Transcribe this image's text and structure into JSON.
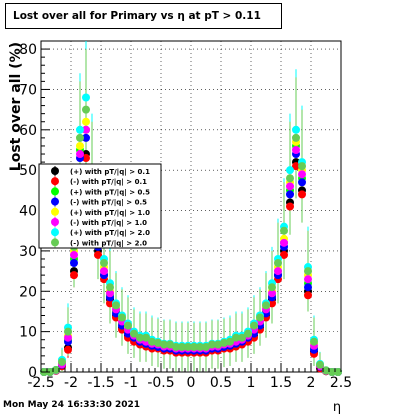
{
  "title": "Lost over all for Primary vs   η at pT > 0.11",
  "timestamp": "Mon May 24 16:33:30 2021",
  "chart_data": {
    "type": "scatter",
    "xlabel": "η",
    "ylabel": "Lost over all (%)",
    "xlim": [
      -2.5,
      2.5
    ],
    "ylim": [
      0,
      82
    ],
    "x_ticks": [
      "-2.5",
      "-2",
      "-1.5",
      "-1",
      "-0.5",
      "0",
      "0.5",
      "1",
      "1.5",
      "2",
      "2.5"
    ],
    "y_ticks": [
      "0",
      "10",
      "20",
      "30",
      "40",
      "50",
      "60",
      "70",
      "80"
    ],
    "grid": true,
    "legend_position": "left, inside plot",
    "x": [
      -2.45,
      -2.35,
      -2.25,
      -2.15,
      -2.05,
      -1.95,
      -1.85,
      -1.75,
      -1.65,
      -1.55,
      -1.45,
      -1.35,
      -1.25,
      -1.15,
      -1.05,
      -0.95,
      -0.85,
      -0.75,
      -0.65,
      -0.55,
      -0.45,
      -0.35,
      -0.25,
      -0.15,
      -0.05,
      0.05,
      0.15,
      0.25,
      0.35,
      0.45,
      0.55,
      0.65,
      0.75,
      0.85,
      0.95,
      1.05,
      1.15,
      1.25,
      1.35,
      1.45,
      1.55,
      1.65,
      1.75,
      1.85,
      1.95,
      2.05,
      2.15,
      2.25,
      2.35,
      2.45
    ],
    "series": [
      {
        "name": "(+) with pT/|q| > 0.1",
        "color": "#000000",
        "values": [
          0,
          0,
          0.3,
          1.5,
          6,
          25,
          50,
          54,
          42,
          30,
          24,
          18,
          14,
          11,
          9,
          8,
          7,
          6.5,
          6,
          6,
          5.5,
          5.5,
          5,
          5,
          5,
          5,
          5,
          5,
          5.5,
          5.5,
          6,
          6,
          6.5,
          7,
          8,
          9,
          11,
          14,
          18,
          24,
          30,
          42,
          52,
          45,
          20,
          5,
          1,
          0.2,
          0,
          0
        ],
        "errors": [
          0,
          0,
          0.3,
          1,
          2,
          3,
          4,
          4,
          4,
          3,
          3,
          3,
          2.5,
          2.5,
          2,
          2,
          2,
          2,
          2,
          2,
          2,
          2,
          2,
          2,
          2,
          2,
          2,
          2,
          2,
          2,
          2,
          2,
          2,
          2,
          2,
          2,
          2.5,
          2.5,
          3,
          3,
          3,
          4,
          4,
          4,
          3,
          2,
          1,
          0.3,
          0,
          0
        ]
      },
      {
        "name": "(-) with pT/|q| > 0.1",
        "color": "#ff0000",
        "values": [
          0,
          0,
          0.3,
          1.4,
          5.5,
          24,
          49,
          53,
          41,
          29,
          23,
          17,
          13.5,
          10.5,
          8.5,
          7.5,
          6.8,
          6.3,
          5.8,
          5.8,
          5.3,
          5.3,
          4.8,
          4.8,
          4.8,
          4.8,
          4.8,
          4.8,
          5.3,
          5.3,
          5.8,
          5.8,
          6.3,
          6.8,
          7.5,
          8.5,
          10.5,
          13.5,
          17,
          23,
          29,
          41,
          51,
          44,
          19,
          4.5,
          0.9,
          0.2,
          0,
          0
        ],
        "errors": [
          0,
          0,
          0.3,
          1,
          2,
          3,
          4,
          4,
          4,
          3,
          3,
          3,
          2.5,
          2.5,
          2,
          2,
          2,
          2,
          2,
          2,
          2,
          2,
          2,
          2,
          2,
          2,
          2,
          2,
          2,
          2,
          2,
          2,
          2,
          2,
          2,
          2,
          2.5,
          2.5,
          3,
          3,
          3,
          4,
          4,
          4,
          3,
          2,
          1,
          0.3,
          0,
          0
        ]
      },
      {
        "name": "(+) with pT/|q| > 0.5",
        "color": "#00ff00",
        "values": [
          0,
          0,
          0.5,
          2,
          8,
          28,
          55,
          60,
          45,
          32,
          25,
          19,
          15,
          12,
          10,
          9,
          8,
          7,
          7,
          6.5,
          6,
          6,
          5.5,
          5.5,
          5.5,
          5.5,
          5.5,
          5.5,
          6,
          6,
          6.5,
          7,
          7,
          8,
          9,
          10,
          12,
          15,
          19,
          25,
          32,
          45,
          56,
          48,
          22,
          6,
          1.5,
          0.3,
          0,
          0
        ],
        "errors": [
          0,
          0,
          0.5,
          1.5,
          3,
          5,
          7,
          8,
          7,
          6,
          5,
          4,
          4,
          3.5,
          3,
          3,
          3,
          3,
          3,
          3,
          3,
          3,
          3,
          3,
          3,
          3,
          3,
          3,
          3,
          3,
          3,
          3,
          3,
          3,
          3,
          3,
          3.5,
          4,
          4,
          5,
          6,
          7,
          8,
          7,
          5,
          3,
          1.5,
          0.5,
          0,
          0
        ]
      },
      {
        "name": "(-) with pT/|q| > 0.5",
        "color": "#0000ff",
        "values": [
          0,
          0,
          0.4,
          1.8,
          7.5,
          27,
          53,
          58,
          44,
          31,
          24,
          18.5,
          14.5,
          11.5,
          9.5,
          8.5,
          7.5,
          7,
          6.5,
          6.2,
          5.8,
          5.8,
          5.3,
          5.3,
          5.3,
          5.3,
          5.3,
          5.3,
          5.8,
          5.8,
          6.2,
          6.5,
          7,
          7.5,
          8.5,
          9.5,
          11.5,
          14.5,
          18.5,
          24,
          31,
          44,
          54,
          47,
          21,
          5.5,
          1.3,
          0.3,
          0,
          0
        ],
        "errors": [
          0,
          0,
          0.5,
          1.5,
          3,
          5,
          7,
          8,
          7,
          6,
          5,
          4,
          4,
          3.5,
          3,
          3,
          3,
          3,
          3,
          3,
          3,
          3,
          3,
          3,
          3,
          3,
          3,
          3,
          3,
          3,
          3,
          3,
          3,
          3,
          3,
          3,
          3.5,
          4,
          4,
          5,
          6,
          7,
          8,
          7,
          5,
          3,
          1.5,
          0.5,
          0,
          0
        ]
      },
      {
        "name": "(+) with pT/|q| > 1.0",
        "color": "#ffff00",
        "values": [
          0,
          0,
          0.4,
          2,
          9,
          30,
          56,
          62,
          47,
          33,
          26,
          20,
          16,
          13,
          11,
          9.5,
          8.5,
          8,
          7.5,
          7,
          6.5,
          6.5,
          6,
          6,
          6,
          6,
          6,
          6,
          6.5,
          6.5,
          7,
          7.5,
          8,
          8.5,
          9.5,
          11,
          13,
          16,
          20,
          26,
          33,
          47,
          57,
          50,
          24,
          7,
          1.5,
          0.3,
          0,
          0
        ],
        "errors": [
          0,
          0,
          0.6,
          2,
          4,
          7,
          10,
          11,
          10,
          8,
          7,
          6,
          5.5,
          5,
          4.5,
          4.5,
          4,
          4,
          4,
          4,
          4,
          4,
          4,
          4,
          4,
          4,
          4,
          4,
          4,
          4,
          4,
          4,
          4,
          4,
          4.5,
          4.5,
          5,
          5.5,
          6,
          7,
          8,
          10,
          11,
          10,
          7,
          4,
          2,
          0.6,
          0,
          0
        ]
      },
      {
        "name": "(-) with pT/|q| > 1.0",
        "color": "#ff00ff",
        "values": [
          0,
          0,
          0.4,
          1.9,
          8.5,
          29,
          54,
          60,
          46,
          32,
          25,
          19.5,
          15.5,
          12.5,
          10.5,
          9,
          8,
          7.5,
          7,
          6.8,
          6.3,
          6.3,
          5.8,
          5.8,
          5.8,
          5.8,
          5.8,
          5.8,
          6.3,
          6.3,
          6.8,
          7,
          7.5,
          8,
          9,
          10.5,
          12.5,
          15.5,
          19.5,
          25,
          32,
          46,
          55,
          49,
          23,
          6.5,
          1.4,
          0.3,
          0,
          0
        ],
        "errors": [
          0,
          0,
          0.6,
          2,
          4,
          7,
          10,
          11,
          10,
          8,
          7,
          6,
          5.5,
          5,
          4.5,
          4.5,
          4,
          4,
          4,
          4,
          4,
          4,
          4,
          4,
          4,
          4,
          4,
          4,
          4,
          4,
          4,
          4,
          4,
          4,
          4.5,
          4.5,
          5,
          5.5,
          6,
          7,
          8,
          10,
          11,
          10,
          7,
          4,
          2,
          0.6,
          0,
          0
        ]
      },
      {
        "name": "(+) with pT/|q| > 2.0",
        "color": "#00ffff",
        "values": [
          0,
          0,
          0.5,
          3,
          11,
          33,
          60,
          68,
          50,
          36,
          28,
          22,
          17,
          14,
          12,
          10,
          9,
          9,
          8,
          7.5,
          7,
          7,
          6.5,
          6.5,
          6.5,
          6.5,
          6.5,
          6.5,
          7,
          7,
          7.5,
          8,
          9,
          9,
          10,
          12,
          14,
          17,
          22,
          28,
          36,
          50,
          60,
          52,
          26,
          8,
          2,
          0.4,
          0,
          0
        ],
        "errors": [
          0,
          0,
          1,
          3,
          6,
          10,
          14,
          15,
          14,
          12,
          10,
          9,
          8,
          7,
          7,
          6,
          6,
          6,
          6,
          6,
          6,
          6,
          6,
          6,
          6,
          6,
          6,
          6,
          6,
          6,
          6,
          6,
          6,
          6,
          6,
          7,
          7,
          8,
          9,
          10,
          12,
          14,
          15,
          14,
          10,
          6,
          3,
          1,
          0,
          0
        ]
      },
      {
        "name": "(-) with pT/|q| > 2.0",
        "color": "#66cc55",
        "values": [
          0,
          0,
          0.5,
          2.5,
          10,
          31,
          58,
          65,
          48,
          35,
          27,
          21,
          16.5,
          13.5,
          11.5,
          9.5,
          8.5,
          8.5,
          7.5,
          7.2,
          6.8,
          6.8,
          6.2,
          6.2,
          6.2,
          6.2,
          6.2,
          6.2,
          6.8,
          6.8,
          7.2,
          7.5,
          8.5,
          8.5,
          9.5,
          11.5,
          13.5,
          16.5,
          21,
          27,
          35,
          48,
          58,
          51,
          25,
          7.5,
          1.8,
          0.4,
          0,
          0
        ],
        "errors": [
          0,
          0,
          1,
          3,
          6,
          10,
          14,
          15,
          14,
          12,
          10,
          9,
          8,
          7,
          7,
          6,
          6,
          6,
          6,
          6,
          6,
          6,
          6,
          6,
          6,
          6,
          6,
          6,
          6,
          6,
          6,
          6,
          6,
          6,
          6,
          7,
          7,
          8,
          9,
          10,
          12,
          14,
          15,
          14,
          10,
          6,
          3,
          1,
          0,
          0
        ]
      }
    ]
  }
}
